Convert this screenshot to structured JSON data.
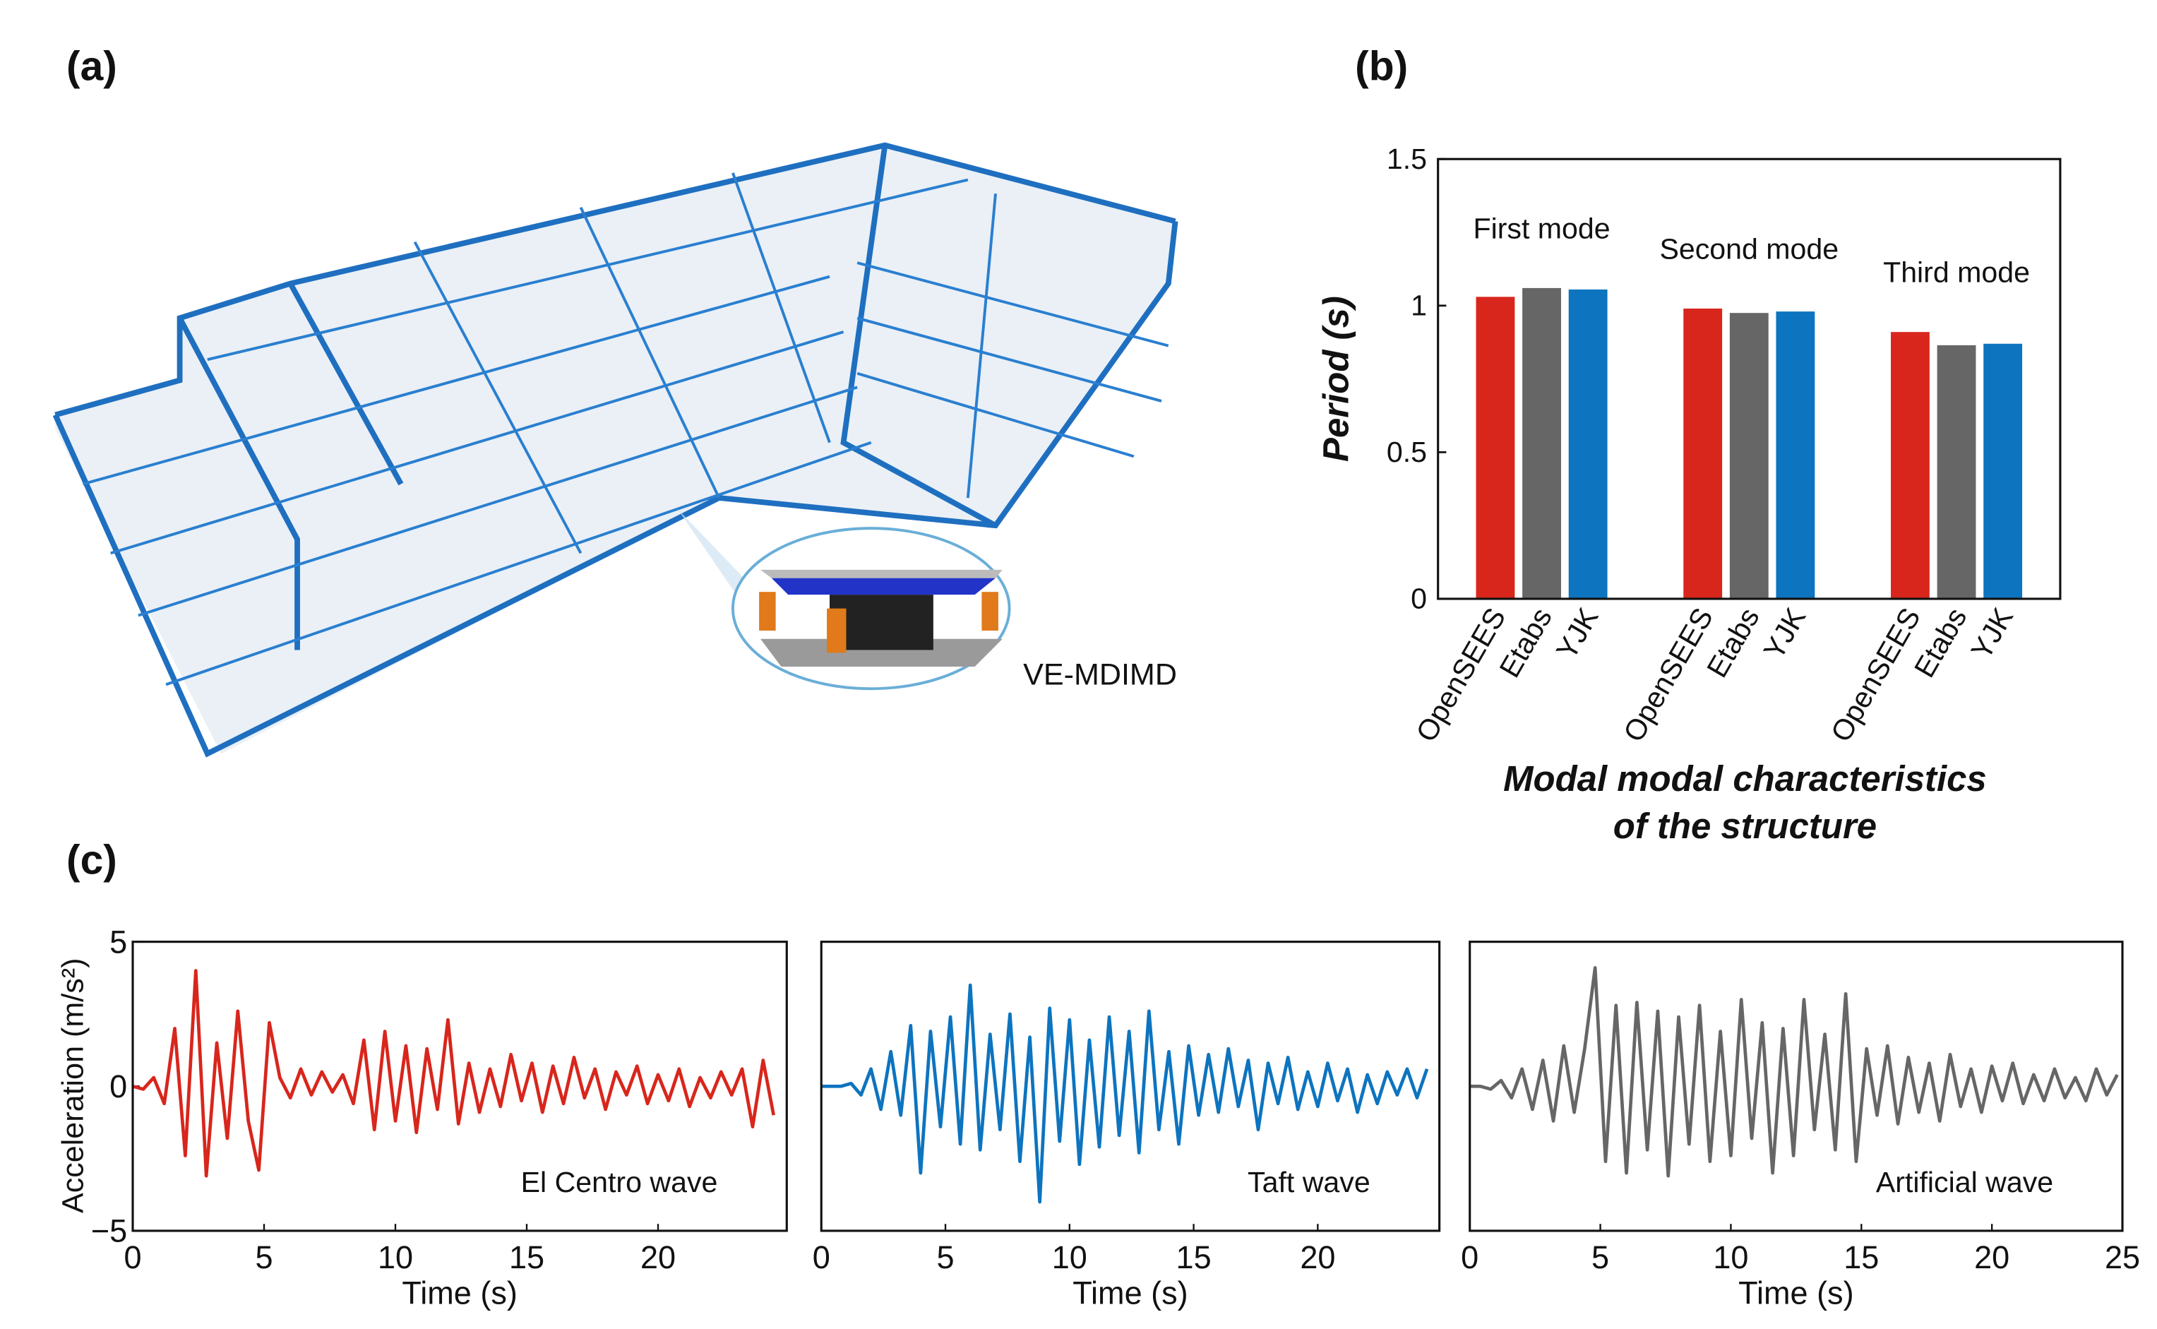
{
  "panel_labels": [
    "(a)",
    "(b)",
    "(c)"
  ],
  "device_label": "VE-MDIMD",
  "chart_data": [
    {
      "type": "bar",
      "categories": [
        "First mode",
        "Second mode",
        "Third mode"
      ],
      "series": [
        {
          "name": "OpenSEES",
          "color": "#d8261c",
          "values": [
            1.03,
            0.99,
            0.91
          ]
        },
        {
          "name": "Etabs",
          "color": "#666666",
          "values": [
            1.06,
            0.975,
            0.865
          ]
        },
        {
          "name": "YJK",
          "color": "#0d74bf",
          "values": [
            1.055,
            0.98,
            0.87
          ]
        }
      ],
      "ylabel": "Period (s)",
      "xlabel": [
        "Modal modal characteristics",
        "of the structure"
      ],
      "ylim": [
        0,
        1.5
      ],
      "yticks": [
        0,
        0.5,
        1,
        1.5
      ]
    },
    {
      "type": "line",
      "color": "#d8261c",
      "annotation": "El Centro wave",
      "xlabel": "Time (s)",
      "ylabel": "Acceleration (m/s²)",
      "xlim": [
        0,
        24.9
      ],
      "xticks": [
        0,
        5,
        10,
        15,
        20
      ],
      "ylim": [
        -5,
        5
      ],
      "yticks": [
        5,
        0,
        {
          "value": -5,
          "label": "−5"
        }
      ],
      "x": [
        0,
        0.4,
        0.8,
        1.2,
        1.6,
        2,
        2.4,
        2.8,
        3.2,
        3.6,
        4,
        4.4,
        4.8,
        5.2,
        5.6,
        6,
        6.4,
        6.8,
        7.2,
        7.6,
        8,
        8.4,
        8.8,
        9.2,
        9.6,
        10,
        10.4,
        10.8,
        11.2,
        11.6,
        12,
        12.4,
        12.8,
        13.2,
        13.6,
        14,
        14.4,
        14.8,
        15.2,
        15.6,
        16,
        16.4,
        16.8,
        17.2,
        17.6,
        18,
        18.4,
        18.8,
        19.2,
        19.6,
        20,
        20.4,
        20.8,
        21.2,
        21.6,
        22,
        22.4,
        22.8,
        23.2,
        23.6,
        24,
        24.4
      ],
      "values": [
        0,
        -0.1,
        0.3,
        -0.6,
        2.0,
        -2.4,
        4.0,
        -3.1,
        1.5,
        -1.8,
        2.6,
        -1.2,
        -2.9,
        2.2,
        0.3,
        -0.4,
        0.6,
        -0.3,
        0.5,
        -0.2,
        0.4,
        -0.6,
        1.6,
        -1.5,
        1.9,
        -1.2,
        1.4,
        -1.6,
        1.3,
        -0.8,
        2.3,
        -1.3,
        0.8,
        -0.9,
        0.6,
        -0.7,
        1.1,
        -0.5,
        0.8,
        -0.9,
        0.7,
        -0.6,
        1.0,
        -0.4,
        0.6,
        -0.8,
        0.5,
        -0.3,
        0.7,
        -0.6,
        0.4,
        -0.5,
        0.6,
        -0.7,
        0.3,
        -0.4,
        0.5,
        -0.3,
        0.6,
        -1.4,
        0.9,
        -1.0
      ]
    },
    {
      "type": "line",
      "color": "#0d74bf",
      "annotation": "Taft wave",
      "xlabel": "Time (s)",
      "xlim": [
        0,
        24.9
      ],
      "xticks": [
        0,
        5,
        10,
        15,
        20
      ],
      "ylim": [
        -5,
        5
      ],
      "x": [
        0,
        0.4,
        0.8,
        1.2,
        1.6,
        2,
        2.4,
        2.8,
        3.2,
        3.6,
        4,
        4.4,
        4.8,
        5.2,
        5.6,
        6,
        6.4,
        6.8,
        7.2,
        7.6,
        8,
        8.4,
        8.8,
        9.2,
        9.6,
        10,
        10.4,
        10.8,
        11.2,
        11.6,
        12,
        12.4,
        12.8,
        13.2,
        13.6,
        14,
        14.4,
        14.8,
        15.2,
        15.6,
        16,
        16.4,
        16.8,
        17.2,
        17.6,
        18,
        18.4,
        18.8,
        19.2,
        19.6,
        20,
        20.4,
        20.8,
        21.2,
        21.6,
        22,
        22.4,
        22.8,
        23.2,
        23.6,
        24,
        24.4
      ],
      "values": [
        0,
        0,
        0,
        0.1,
        -0.3,
        0.6,
        -0.8,
        1.2,
        -1.0,
        2.1,
        -3.0,
        1.9,
        -1.4,
        2.4,
        -2.0,
        3.5,
        -2.2,
        1.8,
        -1.5,
        2.5,
        -2.6,
        1.7,
        -4.0,
        2.7,
        -1.9,
        2.3,
        -2.7,
        1.6,
        -2.1,
        2.4,
        -1.7,
        1.9,
        -2.3,
        2.6,
        -1.5,
        1.2,
        -2.0,
        1.4,
        -1.0,
        1.1,
        -0.9,
        1.3,
        -0.7,
        0.9,
        -1.5,
        0.8,
        -0.6,
        1.0,
        -0.8,
        0.5,
        -0.7,
        0.8,
        -0.5,
        0.6,
        -0.9,
        0.4,
        -0.6,
        0.5,
        -0.3,
        0.6,
        -0.4,
        0.6
      ]
    },
    {
      "type": "line",
      "color": "#666666",
      "annotation": "Artificial wave",
      "xlabel": "Time (s)",
      "xlim": [
        0,
        25
      ],
      "xticks": [
        0,
        5,
        10,
        15,
        20,
        25
      ],
      "ylim": [
        -5,
        5
      ],
      "x": [
        0,
        0.4,
        0.8,
        1.2,
        1.6,
        2,
        2.4,
        2.8,
        3.2,
        3.6,
        4,
        4.4,
        4.8,
        5.2,
        5.6,
        6,
        6.4,
        6.8,
        7.2,
        7.6,
        8,
        8.4,
        8.8,
        9.2,
        9.6,
        10,
        10.4,
        10.8,
        11.2,
        11.6,
        12,
        12.4,
        12.8,
        13.2,
        13.6,
        14,
        14.4,
        14.8,
        15.2,
        15.6,
        16,
        16.4,
        16.8,
        17.2,
        17.6,
        18,
        18.4,
        18.8,
        19.2,
        19.6,
        20,
        20.4,
        20.8,
        21.2,
        21.6,
        22,
        22.4,
        22.8,
        23.2,
        23.6,
        24,
        24.4,
        24.8
      ],
      "values": [
        0,
        0,
        -0.1,
        0.2,
        -0.4,
        0.6,
        -0.8,
        0.9,
        -1.2,
        1.4,
        -0.9,
        1.3,
        4.1,
        -2.6,
        2.8,
        -3.0,
        2.9,
        -2.2,
        2.6,
        -3.1,
        2.4,
        -2.0,
        2.8,
        -2.6,
        1.9,
        -2.4,
        3.0,
        -1.8,
        2.2,
        -3.0,
        2.0,
        -2.4,
        3.0,
        -1.5,
        1.8,
        -2.2,
        3.2,
        -2.6,
        1.3,
        -1.0,
        1.4,
        -1.3,
        1.0,
        -0.9,
        0.8,
        -1.2,
        1.1,
        -0.7,
        0.6,
        -0.9,
        0.7,
        -0.5,
        0.8,
        -0.6,
        0.4,
        -0.5,
        0.6,
        -0.4,
        0.3,
        -0.5,
        0.6,
        -0.3,
        0.4
      ]
    }
  ]
}
